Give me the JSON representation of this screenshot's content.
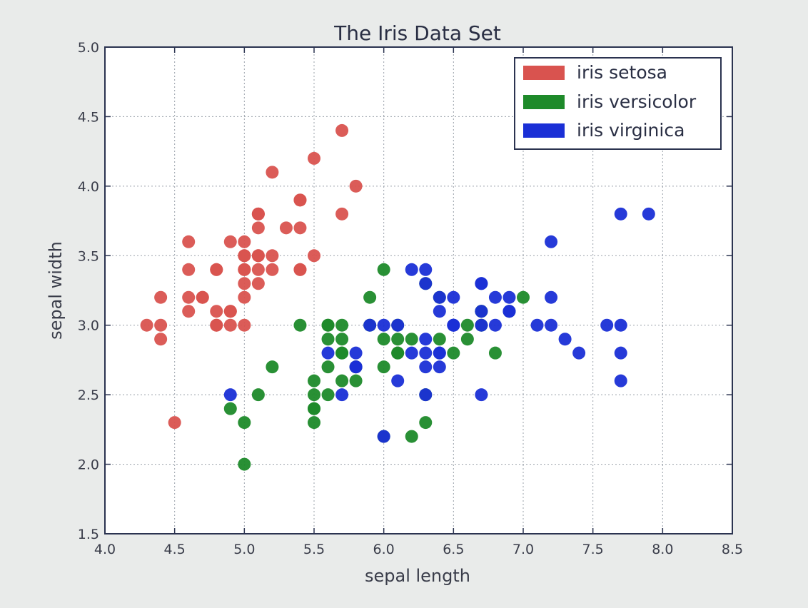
{
  "chart_data": {
    "type": "scatter",
    "title": "The Iris Data Set",
    "xlabel": "sepal length",
    "ylabel": "sepal width",
    "xlim": [
      4.0,
      8.5
    ],
    "ylim": [
      1.5,
      5.0
    ],
    "xticks": [
      "4.0",
      "4.5",
      "5.0",
      "5.5",
      "6.0",
      "6.5",
      "7.0",
      "7.5",
      "8.0",
      "8.5"
    ],
    "yticks": [
      "1.5",
      "2.0",
      "2.5",
      "3.0",
      "3.5",
      "4.0",
      "4.5",
      "5.0"
    ],
    "grid": true,
    "legend_position": "top-right",
    "series": [
      {
        "name": "iris setosa",
        "color": "#d9534f",
        "points": [
          [
            5.1,
            3.5
          ],
          [
            4.9,
            3.0
          ],
          [
            4.7,
            3.2
          ],
          [
            4.6,
            3.1
          ],
          [
            5.0,
            3.6
          ],
          [
            5.4,
            3.9
          ],
          [
            4.6,
            3.4
          ],
          [
            5.0,
            3.4
          ],
          [
            4.4,
            2.9
          ],
          [
            4.9,
            3.1
          ],
          [
            5.4,
            3.7
          ],
          [
            4.8,
            3.4
          ],
          [
            4.8,
            3.0
          ],
          [
            4.3,
            3.0
          ],
          [
            5.8,
            4.0
          ],
          [
            5.7,
            4.4
          ],
          [
            5.4,
            3.9
          ],
          [
            5.1,
            3.5
          ],
          [
            5.7,
            3.8
          ],
          [
            5.1,
            3.8
          ],
          [
            5.4,
            3.4
          ],
          [
            5.1,
            3.7
          ],
          [
            4.6,
            3.6
          ],
          [
            5.1,
            3.3
          ],
          [
            4.8,
            3.4
          ],
          [
            5.0,
            3.0
          ],
          [
            5.0,
            3.4
          ],
          [
            5.2,
            3.5
          ],
          [
            5.2,
            3.4
          ],
          [
            4.7,
            3.2
          ],
          [
            4.8,
            3.1
          ],
          [
            5.4,
            3.4
          ],
          [
            5.2,
            4.1
          ],
          [
            5.5,
            4.2
          ],
          [
            4.9,
            3.1
          ],
          [
            5.0,
            3.2
          ],
          [
            5.5,
            3.5
          ],
          [
            4.9,
            3.6
          ],
          [
            4.4,
            3.0
          ],
          [
            5.1,
            3.4
          ],
          [
            5.0,
            3.5
          ],
          [
            4.5,
            2.3
          ],
          [
            4.4,
            3.2
          ],
          [
            5.0,
            3.5
          ],
          [
            5.1,
            3.8
          ],
          [
            4.8,
            3.0
          ],
          [
            5.1,
            3.8
          ],
          [
            4.6,
            3.2
          ],
          [
            5.3,
            3.7
          ],
          [
            5.0,
            3.3
          ]
        ]
      },
      {
        "name": "iris versicolor",
        "color": "#1e8a2a",
        "points": [
          [
            7.0,
            3.2
          ],
          [
            6.4,
            3.2
          ],
          [
            6.9,
            3.1
          ],
          [
            5.5,
            2.3
          ],
          [
            6.5,
            2.8
          ],
          [
            5.7,
            2.8
          ],
          [
            6.3,
            3.3
          ],
          [
            4.9,
            2.4
          ],
          [
            6.6,
            2.9
          ],
          [
            5.2,
            2.7
          ],
          [
            5.0,
            2.0
          ],
          [
            5.9,
            3.0
          ],
          [
            6.0,
            2.2
          ],
          [
            6.1,
            2.9
          ],
          [
            5.6,
            2.9
          ],
          [
            6.7,
            3.1
          ],
          [
            5.6,
            3.0
          ],
          [
            5.8,
            2.7
          ],
          [
            6.2,
            2.2
          ],
          [
            5.6,
            2.5
          ],
          [
            5.9,
            3.2
          ],
          [
            6.1,
            2.8
          ],
          [
            6.3,
            2.5
          ],
          [
            6.1,
            2.8
          ],
          [
            6.4,
            2.9
          ],
          [
            6.6,
            3.0
          ],
          [
            6.8,
            2.8
          ],
          [
            6.7,
            3.0
          ],
          [
            6.0,
            2.9
          ],
          [
            5.7,
            2.6
          ],
          [
            5.5,
            2.4
          ],
          [
            5.5,
            2.4
          ],
          [
            5.8,
            2.7
          ],
          [
            6.0,
            2.7
          ],
          [
            5.4,
            3.0
          ],
          [
            6.0,
            3.4
          ],
          [
            6.7,
            3.1
          ],
          [
            6.3,
            2.3
          ],
          [
            5.6,
            3.0
          ],
          [
            5.5,
            2.5
          ],
          [
            5.5,
            2.6
          ],
          [
            6.1,
            3.0
          ],
          [
            5.8,
            2.6
          ],
          [
            5.0,
            2.3
          ],
          [
            5.6,
            2.7
          ],
          [
            5.7,
            3.0
          ],
          [
            5.7,
            2.9
          ],
          [
            6.2,
            2.9
          ],
          [
            5.1,
            2.5
          ],
          [
            5.7,
            2.8
          ]
        ]
      },
      {
        "name": "iris virginica",
        "color": "#1a2fd6",
        "points": [
          [
            6.3,
            3.3
          ],
          [
            5.8,
            2.7
          ],
          [
            7.1,
            3.0
          ],
          [
            6.3,
            2.9
          ],
          [
            6.5,
            3.0
          ],
          [
            7.6,
            3.0
          ],
          [
            4.9,
            2.5
          ],
          [
            7.3,
            2.9
          ],
          [
            6.7,
            2.5
          ],
          [
            7.2,
            3.6
          ],
          [
            6.5,
            3.2
          ],
          [
            6.4,
            2.7
          ],
          [
            6.8,
            3.0
          ],
          [
            5.7,
            2.5
          ],
          [
            5.8,
            2.8
          ],
          [
            6.4,
            3.2
          ],
          [
            6.5,
            3.0
          ],
          [
            7.7,
            3.8
          ],
          [
            7.7,
            2.6
          ],
          [
            6.0,
            2.2
          ],
          [
            6.9,
            3.2
          ],
          [
            5.6,
            2.8
          ],
          [
            7.7,
            2.8
          ],
          [
            6.3,
            2.7
          ],
          [
            6.7,
            3.3
          ],
          [
            7.2,
            3.2
          ],
          [
            6.2,
            2.8
          ],
          [
            6.1,
            3.0
          ],
          [
            6.4,
            2.8
          ],
          [
            7.2,
            3.0
          ],
          [
            7.4,
            2.8
          ],
          [
            7.9,
            3.8
          ],
          [
            6.4,
            2.8
          ],
          [
            6.3,
            2.8
          ],
          [
            6.1,
            2.6
          ],
          [
            7.7,
            3.0
          ],
          [
            6.3,
            3.4
          ],
          [
            6.4,
            3.1
          ],
          [
            6.0,
            3.0
          ],
          [
            6.9,
            3.1
          ],
          [
            6.7,
            3.1
          ],
          [
            6.9,
            3.1
          ],
          [
            5.8,
            2.7
          ],
          [
            6.8,
            3.2
          ],
          [
            6.7,
            3.3
          ],
          [
            6.7,
            3.0
          ],
          [
            6.3,
            2.5
          ],
          [
            6.5,
            3.0
          ],
          [
            6.2,
            3.4
          ],
          [
            5.9,
            3.0
          ]
        ]
      }
    ]
  }
}
